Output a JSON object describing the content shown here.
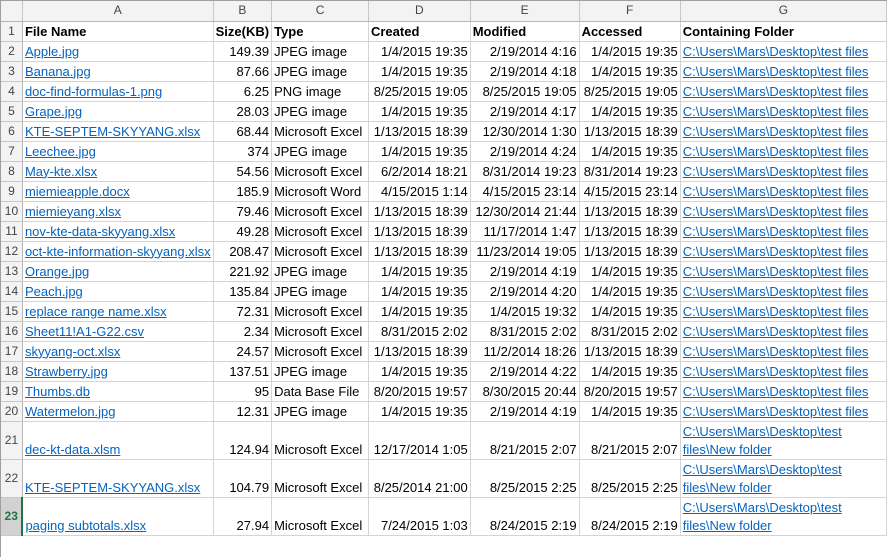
{
  "columns": [
    "A",
    "B",
    "C",
    "D",
    "E",
    "F",
    "G"
  ],
  "header": {
    "row_number": "1",
    "file_name": "File Name",
    "size": "Size(KB)",
    "type": "Type",
    "created": "Created",
    "modified": "Modified",
    "accessed": "Accessed",
    "folder": "Containing Folder"
  },
  "rows": [
    {
      "n": "2",
      "name": "Apple.jpg",
      "size": "149.39",
      "type": "JPEG image",
      "created": "1/4/2015 19:35",
      "modified": "2/19/2014 4:16",
      "accessed": "1/4/2015 19:35",
      "folder": "C:\\Users\\Mars\\Desktop\\test files"
    },
    {
      "n": "3",
      "name": "Banana.jpg",
      "size": "87.66",
      "type": "JPEG image",
      "created": "1/4/2015 19:35",
      "modified": "2/19/2014 4:18",
      "accessed": "1/4/2015 19:35",
      "folder": "C:\\Users\\Mars\\Desktop\\test files"
    },
    {
      "n": "4",
      "name": "doc-find-formulas-1.png",
      "size": "6.25",
      "type": "PNG image",
      "created": "8/25/2015 19:05",
      "modified": "8/25/2015 19:05",
      "accessed": "8/25/2015 19:05",
      "folder": "C:\\Users\\Mars\\Desktop\\test files"
    },
    {
      "n": "5",
      "name": "Grape.jpg",
      "size": "28.03",
      "type": "JPEG image",
      "created": "1/4/2015 19:35",
      "modified": "2/19/2014 4:17",
      "accessed": "1/4/2015 19:35",
      "folder": "C:\\Users\\Mars\\Desktop\\test files"
    },
    {
      "n": "6",
      "name": "KTE-SEPTEM-SKYYANG.xlsx",
      "size": "68.44",
      "type": "Microsoft Excel",
      "created": "1/13/2015 18:39",
      "modified": "12/30/2014 1:30",
      "accessed": "1/13/2015 18:39",
      "folder": "C:\\Users\\Mars\\Desktop\\test files"
    },
    {
      "n": "7",
      "name": "Leechee.jpg",
      "size": "374",
      "type": "JPEG image",
      "created": "1/4/2015 19:35",
      "modified": "2/19/2014 4:24",
      "accessed": "1/4/2015 19:35",
      "folder": "C:\\Users\\Mars\\Desktop\\test files"
    },
    {
      "n": "8",
      "name": "May-kte.xlsx",
      "size": "54.56",
      "type": "Microsoft Excel",
      "created": "6/2/2014 18:21",
      "modified": "8/31/2014 19:23",
      "accessed": "8/31/2014 19:23",
      "folder": "C:\\Users\\Mars\\Desktop\\test files"
    },
    {
      "n": "9",
      "name": "miemieapple.docx",
      "size": "185.9",
      "type": "Microsoft Word",
      "created": "4/15/2015 1:14",
      "modified": "4/15/2015 23:14",
      "accessed": "4/15/2015 23:14",
      "folder": "C:\\Users\\Mars\\Desktop\\test files"
    },
    {
      "n": "10",
      "name": "miemieyang.xlsx",
      "size": "79.46",
      "type": "Microsoft Excel",
      "created": "1/13/2015 18:39",
      "modified": "12/30/2014 21:44",
      "accessed": "1/13/2015 18:39",
      "folder": "C:\\Users\\Mars\\Desktop\\test files"
    },
    {
      "n": "11",
      "name": "nov-kte-data-skyyang.xlsx",
      "size": "49.28",
      "type": "Microsoft Excel",
      "created": "1/13/2015 18:39",
      "modified": "11/17/2014 1:47",
      "accessed": "1/13/2015 18:39",
      "folder": "C:\\Users\\Mars\\Desktop\\test files"
    },
    {
      "n": "12",
      "name": "oct-kte-information-skyyang.xlsx",
      "size": "208.47",
      "type": "Microsoft Excel",
      "created": "1/13/2015 18:39",
      "modified": "11/23/2014 19:05",
      "accessed": "1/13/2015 18:39",
      "folder": "C:\\Users\\Mars\\Desktop\\test files"
    },
    {
      "n": "13",
      "name": "Orange.jpg",
      "size": "221.92",
      "type": "JPEG image",
      "created": "1/4/2015 19:35",
      "modified": "2/19/2014 4:19",
      "accessed": "1/4/2015 19:35",
      "folder": "C:\\Users\\Mars\\Desktop\\test files"
    },
    {
      "n": "14",
      "name": "Peach.jpg",
      "size": "135.84",
      "type": "JPEG image",
      "created": "1/4/2015 19:35",
      "modified": "2/19/2014 4:20",
      "accessed": "1/4/2015 19:35",
      "folder": "C:\\Users\\Mars\\Desktop\\test files"
    },
    {
      "n": "15",
      "name": "replace range name.xlsx",
      "size": "72.31",
      "type": "Microsoft Excel",
      "created": "1/4/2015 19:35",
      "modified": "1/4/2015 19:32",
      "accessed": "1/4/2015 19:35",
      "folder": "C:\\Users\\Mars\\Desktop\\test files"
    },
    {
      "n": "16",
      "name": "Sheet11!A1-G22.csv",
      "size": "2.34",
      "type": "Microsoft Excel",
      "created": "8/31/2015 2:02",
      "modified": "8/31/2015 2:02",
      "accessed": "8/31/2015 2:02",
      "folder": "C:\\Users\\Mars\\Desktop\\test files"
    },
    {
      "n": "17",
      "name": "skyyang-oct.xlsx",
      "size": "24.57",
      "type": "Microsoft Excel",
      "created": "1/13/2015 18:39",
      "modified": "11/2/2014 18:26",
      "accessed": "1/13/2015 18:39",
      "folder": "C:\\Users\\Mars\\Desktop\\test files"
    },
    {
      "n": "18",
      "name": "Strawberry.jpg",
      "size": "137.51",
      "type": "JPEG image",
      "created": "1/4/2015 19:35",
      "modified": "2/19/2014 4:22",
      "accessed": "1/4/2015 19:35",
      "folder": "C:\\Users\\Mars\\Desktop\\test files"
    },
    {
      "n": "19",
      "name": "Thumbs.db",
      "size": "95",
      "type": "Data Base File",
      "created": "8/20/2015 19:57",
      "modified": "8/30/2015 20:44",
      "accessed": "8/20/2015 19:57",
      "folder": "C:\\Users\\Mars\\Desktop\\test files"
    },
    {
      "n": "20",
      "name": "Watermelon.jpg",
      "size": "12.31",
      "type": "JPEG image",
      "created": "1/4/2015 19:35",
      "modified": "2/19/2014 4:19",
      "accessed": "1/4/2015 19:35",
      "folder": "C:\\Users\\Mars\\Desktop\\test files"
    },
    {
      "n": "21",
      "name": "dec-kt-data.xlsm",
      "size": "124.94",
      "type": "Microsoft Excel",
      "created": "12/17/2014 1:05",
      "modified": "8/21/2015 2:07",
      "accessed": "8/21/2015 2:07",
      "folder": "C:\\Users\\Mars\\Desktop\\test files\\New folder"
    },
    {
      "n": "22",
      "name": "KTE-SEPTEM-SKYYANG.xlsx",
      "size": "104.79",
      "type": "Microsoft Excel",
      "created": "8/25/2014 21:00",
      "modified": "8/25/2015 2:25",
      "accessed": "8/25/2015 2:25",
      "folder": "C:\\Users\\Mars\\Desktop\\test files\\New folder"
    },
    {
      "n": "23",
      "name": "paging subtotals.xlsx",
      "size": "27.94",
      "type": "Microsoft Excel",
      "created": "7/24/2015 1:03",
      "modified": "8/24/2015 2:19",
      "accessed": "8/24/2015 2:19",
      "folder": "C:\\Users\\Mars\\Desktop\\test files\\New folder"
    }
  ]
}
